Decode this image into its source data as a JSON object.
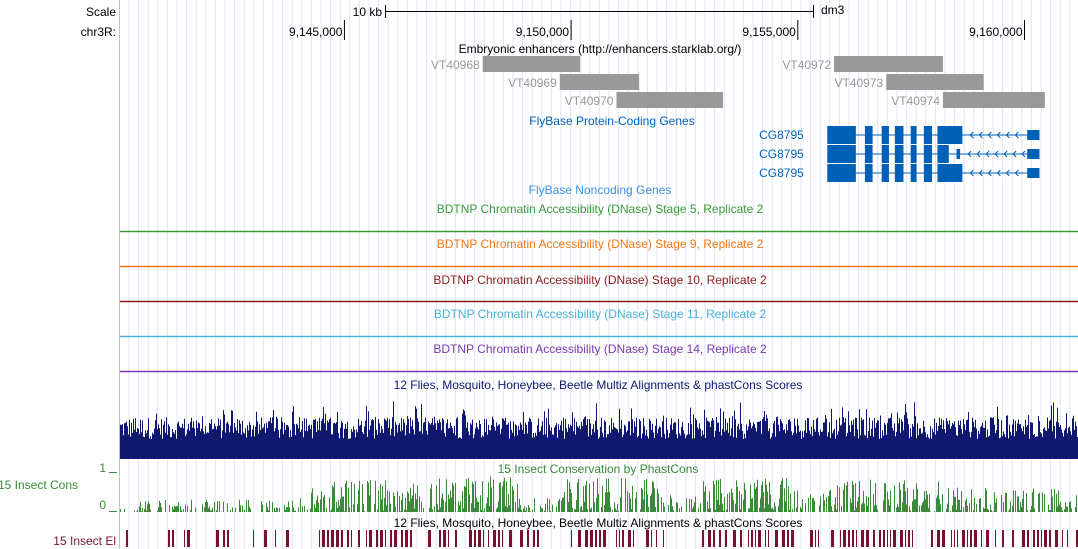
{
  "ruler": {
    "scale_label": "Scale",
    "chrom_label": "chr3R:",
    "scale_bar_label": "10 kb",
    "assembly": "dm3",
    "positions": [
      {
        "value": 9145000,
        "label": "9,145,000"
      },
      {
        "value": 9150000,
        "label": "9,150,000"
      },
      {
        "value": 9155000,
        "label": "9,155,000"
      },
      {
        "value": 9160000,
        "label": "9,160,000"
      }
    ]
  },
  "view": {
    "start": 9140050,
    "end": 9161180
  },
  "tracks": {
    "enhancers": {
      "title": "Embryonic enhancers (http://enhancers.starklab.org/)",
      "color": "#999999",
      "items": [
        {
          "name": "VT40968",
          "start": 9148050,
          "end": 9150200,
          "row": 0
        },
        {
          "name": "VT40969",
          "start": 9149750,
          "end": 9151500,
          "row": 1
        },
        {
          "name": "VT40970",
          "start": 9151000,
          "end": 9153350,
          "row": 2
        },
        {
          "name": "VT40972",
          "start": 9155800,
          "end": 9158200,
          "row": 0
        },
        {
          "name": "VT40973",
          "start": 9156950,
          "end": 9159100,
          "row": 1
        },
        {
          "name": "VT40974",
          "start": 9158200,
          "end": 9160450,
          "row": 2
        }
      ]
    },
    "coding_genes": {
      "title": "FlyBase Protein-Coding Genes",
      "color": "#0060b8",
      "gene_start": 9155000,
      "gene_end": 9160350,
      "transcripts": [
        {
          "name": "CG8795",
          "exons": [
            [
              9155650,
              9156280
            ],
            [
              9156480,
              9156650
            ],
            [
              9156850,
              9157010
            ],
            [
              9157140,
              9157330
            ],
            [
              9157490,
              9157620
            ],
            [
              9157780,
              9157960
            ],
            [
              9158080,
              9158630
            ],
            [
              9160060,
              9160330
            ]
          ]
        },
        {
          "name": "CG8795",
          "exons": [
            [
              9155650,
              9156280
            ],
            [
              9156480,
              9156650
            ],
            [
              9156850,
              9157010
            ],
            [
              9157140,
              9157330
            ],
            [
              9157490,
              9157620
            ],
            [
              9157780,
              9157960
            ],
            [
              9158080,
              9158330
            ],
            [
              9158500,
              9158580
            ],
            [
              9160060,
              9160330
            ]
          ]
        },
        {
          "name": "CG8795",
          "exons": [
            [
              9155650,
              9156280
            ],
            [
              9156480,
              9156650
            ],
            [
              9156850,
              9157010
            ],
            [
              9157140,
              9157330
            ],
            [
              9157490,
              9157620
            ],
            [
              9157780,
              9157960
            ],
            [
              9158080,
              9158630
            ],
            [
              9160060,
              9160330
            ]
          ]
        }
      ]
    },
    "noncoding_genes": {
      "title": "FlyBase Noncoding Genes",
      "color": "#3a8fe0"
    },
    "dnase": [
      {
        "title": "BDTNP Chromatin Accessibility (DNase) Stage 5, Replicate 2",
        "color": "#3a9a3a"
      },
      {
        "title": "BDTNP Chromatin Accessibility (DNase) Stage 9, Replicate 2",
        "color": "#f07818"
      },
      {
        "title": "BDTNP Chromatin Accessibility (DNase) Stage 10, Replicate 2",
        "color": "#8c1a1a"
      },
      {
        "title": "BDTNP Chromatin Accessibility (DNase) Stage 11, Replicate 2",
        "color": "#4ab0d8"
      },
      {
        "title": "BDTNP Chromatin Accessibility (DNase) Stage 14, Replicate 2",
        "color": "#7a3ab0"
      }
    ],
    "multiz": {
      "title": "12 Flies, Mosquito, Honeybee, Beetle Multiz Alignments & phastCons Scores",
      "color": "#101870"
    },
    "phastcons": {
      "title": "15 Insect Conservation by PhastCons",
      "left_label": "15 Insect Cons",
      "y_max_label": "1",
      "y_min_label": "0",
      "color": "#3a8a3a"
    },
    "elements": {
      "title": "12 Flies, Mosquito, Honeybee, Beetle Multiz Alignments & phastCons Scores",
      "left_label": "15 Insect El",
      "color": "#7a1030"
    }
  }
}
